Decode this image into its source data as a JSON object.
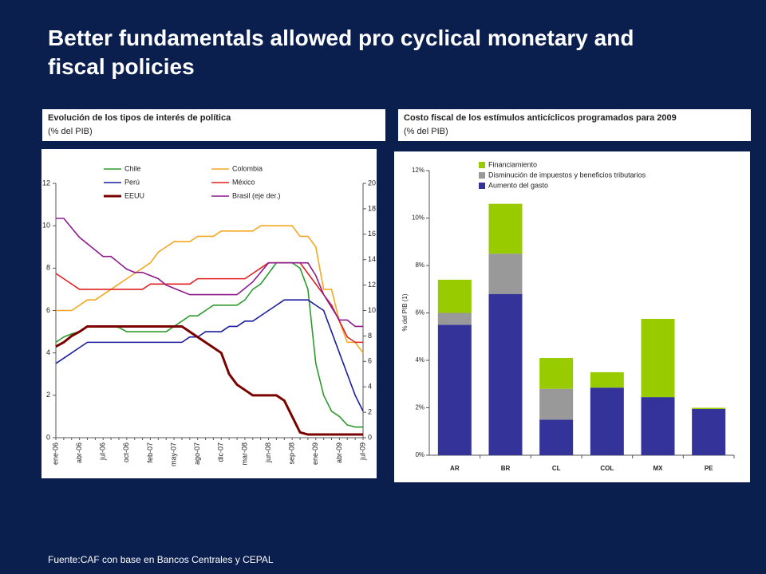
{
  "title": "Better fundamentals allowed pro cyclical monetary and fiscal policies",
  "footer": "Fuente:CAF con base en  Bancos Centrales y CEPAL",
  "chart_data": [
    {
      "type": "line",
      "title": "Evolución de los tipos de interés de política",
      "subtitle": "(% del PIB)",
      "categories": [
        "ene-06",
        null,
        null,
        "abr-06",
        null,
        null,
        "jul-06",
        null,
        null,
        "oct-06",
        null,
        null,
        "feb-07",
        null,
        null,
        "may-07",
        null,
        null,
        "ago-07",
        null,
        null,
        "dic-07",
        null,
        null,
        "mar-08",
        null,
        null,
        "jun-08",
        null,
        null,
        "sep-08",
        null,
        null,
        "ene-09",
        null,
        null,
        "abr-09",
        null,
        null,
        "jul-09"
      ],
      "ylim": [
        0,
        12
      ],
      "yticks": [
        0,
        2,
        4,
        6,
        8,
        10,
        12
      ],
      "y2lim": [
        0,
        20
      ],
      "y2ticks": [
        0,
        2,
        4,
        6,
        8,
        10,
        12,
        14,
        16,
        18,
        20
      ],
      "series": [
        {
          "name": "Chile",
          "color": "#2e9a2e",
          "values": [
            4.5,
            4.75,
            4.9,
            5.0,
            5.25,
            5.25,
            5.25,
            5.25,
            5.2,
            5.0,
            5.0,
            5.0,
            5.0,
            5.0,
            5.0,
            5.25,
            5.5,
            5.75,
            5.75,
            6.0,
            6.25,
            6.25,
            6.25,
            6.25,
            6.5,
            7.0,
            7.25,
            7.75,
            8.25,
            8.25,
            8.25,
            8.0,
            7.0,
            3.5,
            2.0,
            1.25,
            1.0,
            0.6,
            0.5,
            0.5
          ]
        },
        {
          "name": "Colombia",
          "color": "#f5a623",
          "values": [
            6.0,
            6.0,
            6.0,
            6.25,
            6.5,
            6.5,
            6.75,
            7.0,
            7.25,
            7.5,
            7.75,
            8.0,
            8.25,
            8.75,
            9.0,
            9.25,
            9.25,
            9.25,
            9.5,
            9.5,
            9.5,
            9.75,
            9.75,
            9.75,
            9.75,
            9.75,
            10.0,
            10.0,
            10.0,
            10.0,
            10.0,
            9.5,
            9.5,
            9.0,
            7.0,
            7.0,
            5.5,
            4.5,
            4.5,
            4.0
          ]
        },
        {
          "name": "Perú",
          "color": "#1c1ca0",
          "values": [
            3.5,
            3.75,
            4.0,
            4.25,
            4.5,
            4.5,
            4.5,
            4.5,
            4.5,
            4.5,
            4.5,
            4.5,
            4.5,
            4.5,
            4.5,
            4.5,
            4.5,
            4.75,
            4.75,
            5.0,
            5.0,
            5.0,
            5.25,
            5.25,
            5.5,
            5.5,
            5.75,
            6.0,
            6.25,
            6.5,
            6.5,
            6.5,
            6.5,
            6.25,
            6.0,
            5.0,
            4.0,
            3.0,
            2.0,
            1.25
          ]
        },
        {
          "name": "México",
          "color": "#e02020",
          "values": [
            7.75,
            7.5,
            7.25,
            7.0,
            7.0,
            7.0,
            7.0,
            7.0,
            7.0,
            7.0,
            7.0,
            7.0,
            7.25,
            7.25,
            7.25,
            7.25,
            7.25,
            7.25,
            7.5,
            7.5,
            7.5,
            7.5,
            7.5,
            7.5,
            7.5,
            7.75,
            8.0,
            8.25,
            8.25,
            8.25,
            8.25,
            8.25,
            7.75,
            7.25,
            6.75,
            6.25,
            5.5,
            4.75,
            4.5,
            4.5
          ]
        },
        {
          "name": "EEUU",
          "color": "#7a0000",
          "width": 3,
          "values": [
            4.3,
            4.5,
            4.8,
            5.0,
            5.25,
            5.25,
            5.25,
            5.25,
            5.25,
            5.25,
            5.25,
            5.25,
            5.25,
            5.25,
            5.25,
            5.25,
            5.25,
            5.0,
            4.75,
            4.5,
            4.25,
            4.0,
            3.0,
            2.5,
            2.25,
            2.0,
            2.0,
            2.0,
            2.0,
            1.75,
            1.0,
            0.25,
            0.15,
            0.15,
            0.15,
            0.15,
            0.15,
            0.15,
            0.15,
            0.15
          ]
        },
        {
          "name": "Brasil (eje der.)",
          "color": "#8b1a8b",
          "axis": "y2",
          "values": [
            17.25,
            17.25,
            16.5,
            15.75,
            15.25,
            14.75,
            14.25,
            14.25,
            13.75,
            13.25,
            13.0,
            13.0,
            12.75,
            12.5,
            12.0,
            11.75,
            11.5,
            11.25,
            11.25,
            11.25,
            11.25,
            11.25,
            11.25,
            11.25,
            11.75,
            12.25,
            13.0,
            13.75,
            13.75,
            13.75,
            13.75,
            13.75,
            13.75,
            12.75,
            11.25,
            10.25,
            9.25,
            9.25,
            8.75,
            8.75
          ]
        }
      ]
    },
    {
      "type": "bar",
      "stacked": true,
      "title": "Costo fiscal de los estímulos anticíclicos programados para 2009",
      "subtitle": "(% del PIB)",
      "ylabel": "% del PIB (1)",
      "categories": [
        "AR",
        "BR",
        "CL",
        "COL",
        "MX",
        "PE"
      ],
      "ylim": [
        0,
        12
      ],
      "yticks": [
        {
          "value": 0,
          "label": "0%"
        },
        {
          "value": 2,
          "label": "2%"
        },
        {
          "value": 4,
          "label": "4%"
        },
        {
          "value": 6,
          "label": "6%"
        },
        {
          "value": 8,
          "label": "8%"
        },
        {
          "value": 10,
          "label": "10%"
        },
        {
          "value": 12,
          "label": "12%"
        }
      ],
      "series": [
        {
          "name": "Aumento del gasto",
          "color": "#333399",
          "values": [
            5.5,
            6.8,
            1.5,
            2.85,
            2.45,
            1.95
          ]
        },
        {
          "name": "Disminución de impuestos y beneficios tributarios",
          "color": "#999999",
          "values": [
            0.5,
            1.7,
            1.3,
            0,
            0,
            0
          ]
        },
        {
          "name": "Financiamiento",
          "color": "#99cc00",
          "values": [
            1.4,
            2.1,
            1.3,
            0.65,
            3.3,
            0.05
          ]
        }
      ]
    }
  ]
}
